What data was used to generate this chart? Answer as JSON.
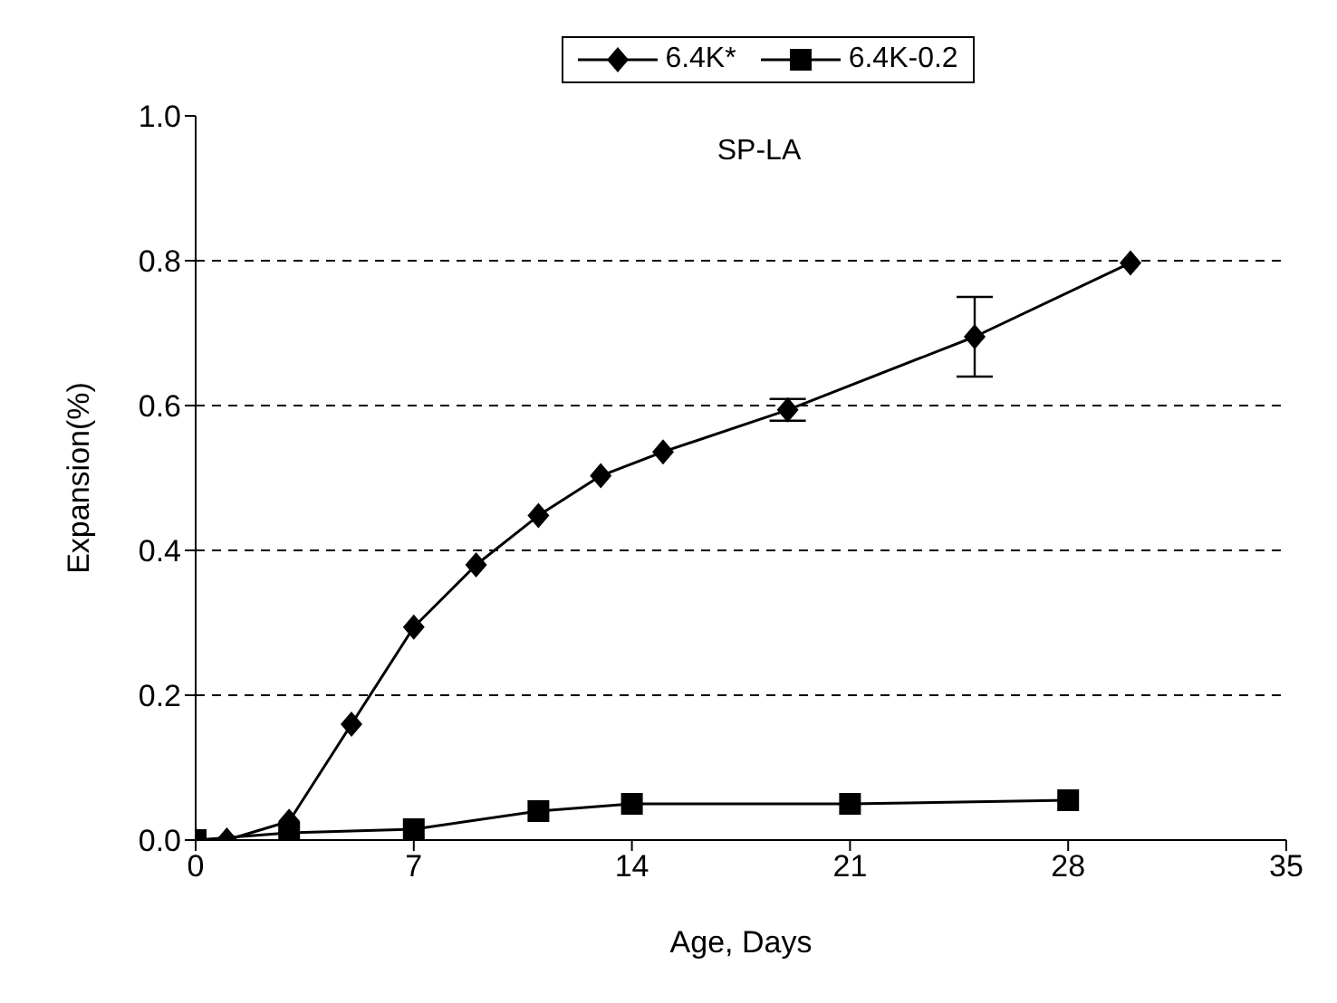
{
  "chart_data": {
    "type": "line",
    "xlabel": "Age, Days",
    "ylabel": "Expansion(%)",
    "annotations": [
      "SP-LA"
    ],
    "xlim": [
      0,
      35
    ],
    "xticks": [
      0,
      7,
      14,
      21,
      28,
      35
    ],
    "ylim": [
      0,
      1
    ],
    "yticks": [
      {
        "value": 0,
        "label": "0.0"
      },
      {
        "value": 0.2,
        "label": "0.2"
      },
      {
        "value": 0.4,
        "label": "0.4"
      },
      {
        "value": 0.6,
        "label": "0.6"
      },
      {
        "value": 0.8,
        "label": "0.8"
      },
      {
        "value": 1,
        "label": "1.0"
      }
    ],
    "grid": "y",
    "legend": "top",
    "line_style": "solid",
    "series": [
      {
        "name": "6.4K*",
        "color": "#000000",
        "marker": "diamond",
        "x": [
          0,
          1,
          3,
          5,
          7,
          9,
          11,
          13,
          15,
          19,
          25,
          30
        ],
        "values": [
          0,
          0,
          0.026,
          0.16,
          0.294,
          0.38,
          0.448,
          0.503,
          0.536,
          0.594,
          0.695,
          0.797
        ],
        "errors": [
          null,
          null,
          null,
          null,
          null,
          null,
          null,
          null,
          null,
          0.015,
          0.055,
          null
        ]
      },
      {
        "name": "6.4K-0.2",
        "color": "#000000",
        "marker": "square",
        "x": [
          0,
          3,
          7,
          11,
          14,
          21,
          28
        ],
        "values": [
          0,
          0.01,
          0.015,
          0.04,
          0.05,
          0.05,
          0.055
        ]
      }
    ]
  }
}
